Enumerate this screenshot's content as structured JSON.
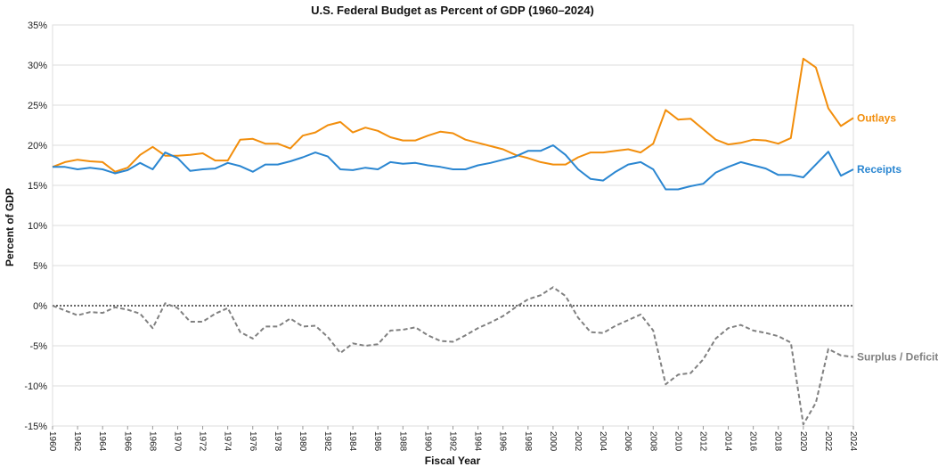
{
  "chart_data": {
    "type": "line",
    "title": "U.S. Federal Budget as Percent of GDP (1960–2024)",
    "xlabel": "Fiscal Year",
    "ylabel": "Percent of GDP",
    "ylim": [
      -15,
      35
    ],
    "xlim": [
      1960,
      2024
    ],
    "y_ticks": [
      35,
      30,
      25,
      20,
      15,
      10,
      5,
      0,
      -5,
      -10,
      -15
    ],
    "y_tick_labels": [
      "35%",
      "30%",
      "25%",
      "20%",
      "15%",
      "10%",
      "5%",
      "0%",
      "-5%",
      "-10%",
      "-15%"
    ],
    "x_ticks": [
      1960,
      1962,
      1964,
      1966,
      1968,
      1970,
      1972,
      1974,
      1976,
      1978,
      1980,
      1982,
      1984,
      1986,
      1988,
      1990,
      1992,
      1994,
      1996,
      1998,
      2000,
      2002,
      2004,
      2006,
      2008,
      2010,
      2012,
      2014,
      2016,
      2018,
      2020,
      2022,
      2024
    ],
    "x_tick_labels": [
      "1960",
      "1962",
      "1964",
      "1966",
      "1968",
      "1970",
      "1972",
      "1974",
      "1976",
      "1978",
      "1980",
      "1982",
      "1984",
      "1986",
      "1988",
      "1990",
      "1992",
      "1994",
      "1996",
      "1998",
      "2000",
      "2002",
      "2004",
      "2006",
      "2008",
      "2010",
      "2012",
      "2014",
      "2016",
      "2018",
      "2020",
      "2022",
      "2024"
    ],
    "grid": true,
    "zero_line": "dotted",
    "legend": "end-of-line labels",
    "years": [
      1960,
      1961,
      1962,
      1963,
      1964,
      1965,
      1966,
      1967,
      1968,
      1969,
      1970,
      1971,
      1972,
      1973,
      1974,
      1975,
      1976,
      1977,
      1978,
      1979,
      1980,
      1981,
      1982,
      1983,
      1984,
      1985,
      1986,
      1987,
      1988,
      1989,
      1990,
      1991,
      1992,
      1993,
      1994,
      1995,
      1996,
      1997,
      1998,
      1999,
      2000,
      2001,
      2002,
      2003,
      2004,
      2005,
      2006,
      2007,
      2008,
      2009,
      2010,
      2011,
      2012,
      2013,
      2014,
      2015,
      2016,
      2017,
      2018,
      2019,
      2020,
      2021,
      2022,
      2023,
      2024
    ],
    "series": [
      {
        "name": "Outlays",
        "color": "#f28e0c",
        "dash": "solid",
        "values": [
          17.3,
          17.9,
          18.2,
          18.0,
          17.9,
          16.7,
          17.2,
          18.8,
          19.8,
          18.7,
          18.7,
          18.8,
          19.0,
          18.1,
          18.1,
          20.7,
          20.8,
          20.2,
          20.2,
          19.6,
          21.2,
          21.6,
          22.5,
          22.9,
          21.6,
          22.2,
          21.8,
          21.0,
          20.6,
          20.6,
          21.2,
          21.7,
          21.5,
          20.7,
          20.3,
          19.9,
          19.5,
          18.8,
          18.4,
          17.9,
          17.6,
          17.6,
          18.5,
          19.1,
          19.1,
          19.3,
          19.5,
          19.1,
          20.2,
          24.4,
          23.2,
          23.3,
          22.0,
          20.7,
          20.1,
          20.3,
          20.7,
          20.6,
          20.2,
          20.9,
          30.8,
          29.7,
          24.6,
          22.4,
          23.4
        ]
      },
      {
        "name": "Receipts",
        "color": "#2a86d1",
        "dash": "solid",
        "values": [
          17.3,
          17.3,
          17.0,
          17.2,
          17.0,
          16.5,
          16.9,
          17.8,
          17.0,
          19.1,
          18.4,
          16.8,
          17.0,
          17.1,
          17.8,
          17.4,
          16.7,
          17.6,
          17.6,
          18.0,
          18.5,
          19.1,
          18.6,
          17.0,
          16.9,
          17.2,
          17.0,
          17.9,
          17.7,
          17.8,
          17.5,
          17.3,
          17.0,
          17.0,
          17.5,
          17.8,
          18.2,
          18.6,
          19.3,
          19.3,
          20.0,
          18.8,
          17.0,
          15.8,
          15.6,
          16.7,
          17.6,
          17.9,
          17.0,
          14.5,
          14.5,
          14.9,
          15.2,
          16.6,
          17.3,
          17.9,
          17.5,
          17.1,
          16.3,
          16.3,
          16.0,
          17.6,
          19.2,
          16.2,
          17.0
        ]
      },
      {
        "name": "Surplus / Deficit",
        "color": "#808080",
        "dash": "dashed",
        "values": [
          0.0,
          -0.6,
          -1.2,
          -0.8,
          -0.9,
          -0.2,
          -0.5,
          -1.0,
          -2.8,
          0.3,
          -0.3,
          -2.0,
          -2.0,
          -1.0,
          -0.3,
          -3.3,
          -4.1,
          -2.6,
          -2.6,
          -1.6,
          -2.6,
          -2.5,
          -3.9,
          -5.9,
          -4.7,
          -5.0,
          -4.8,
          -3.1,
          -3.0,
          -2.7,
          -3.7,
          -4.4,
          -4.5,
          -3.7,
          -2.8,
          -2.1,
          -1.3,
          -0.2,
          0.8,
          1.3,
          2.3,
          1.2,
          -1.5,
          -3.3,
          -3.4,
          -2.5,
          -1.8,
          -1.1,
          -3.1,
          -9.8,
          -8.6,
          -8.4,
          -6.7,
          -4.1,
          -2.8,
          -2.4,
          -3.1,
          -3.4,
          -3.8,
          -4.6,
          -14.8,
          -12.1,
          -5.4,
          -6.2,
          -6.4
        ]
      }
    ]
  }
}
